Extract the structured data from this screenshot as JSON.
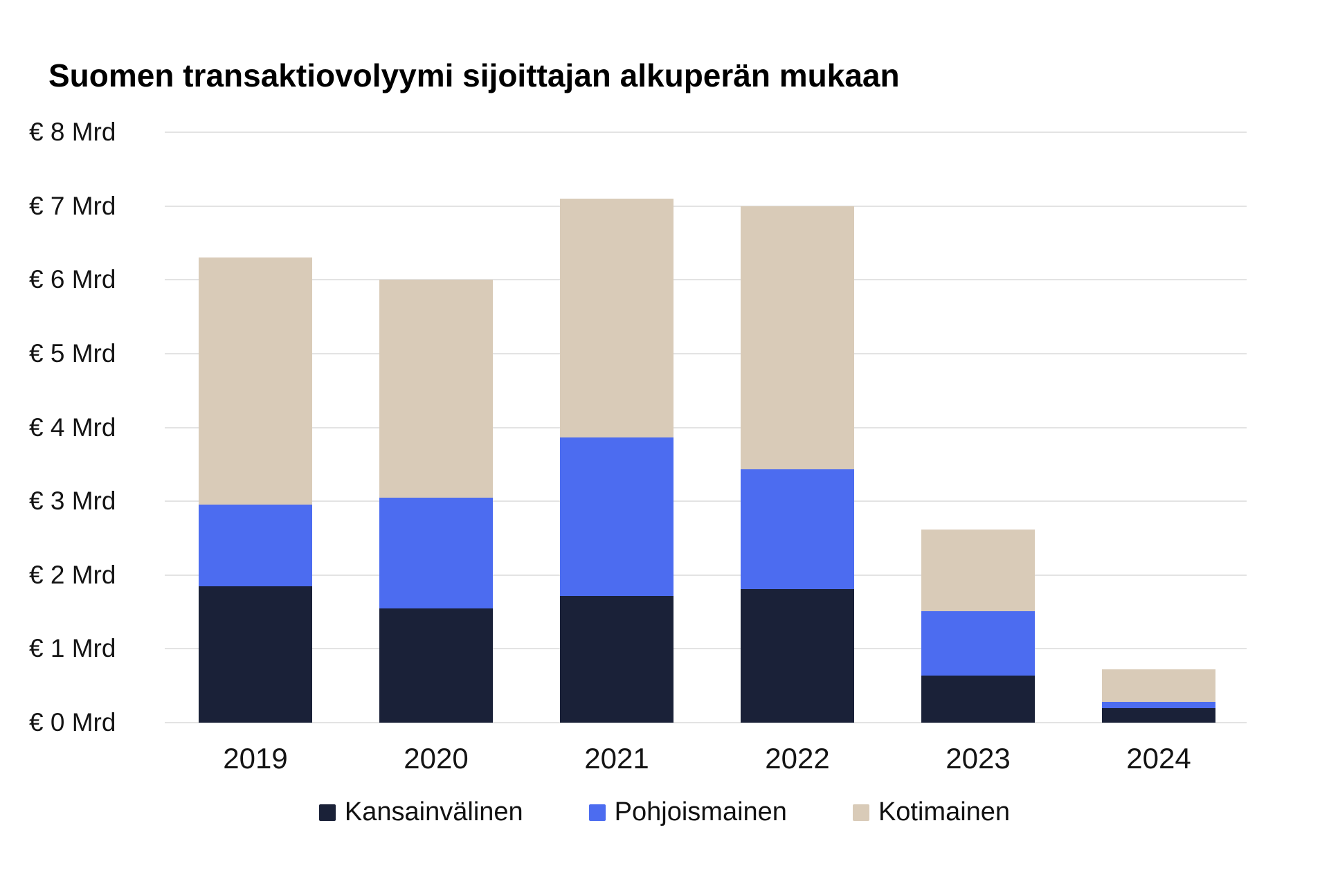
{
  "chart_data": {
    "type": "bar",
    "stacked": true,
    "title": "Suomen transaktiovolyymi sijoittajan alkuperän mukaan",
    "categories": [
      "2019",
      "2020",
      "2021",
      "2022",
      "2023",
      "2024"
    ],
    "series": [
      {
        "name": "Kansainvälinen",
        "color": "#1a2138",
        "values": [
          1.85,
          1.55,
          1.72,
          1.81,
          0.64,
          0.2
        ]
      },
      {
        "name": "Pohjoismainen",
        "color": "#4c6cf0",
        "values": [
          1.1,
          1.5,
          2.14,
          1.62,
          0.87,
          0.08
        ]
      },
      {
        "name": "Kotimainen",
        "color": "#d9cbb8",
        "values": [
          3.35,
          2.95,
          3.24,
          3.57,
          1.11,
          0.44
        ]
      }
    ],
    "totals": [
      6.3,
      6.0,
      7.1,
      7.0,
      2.62,
      0.72
    ],
    "unit": "Mrd €",
    "yticks": [
      "€ 0 Mrd",
      "€ 1 Mrd",
      "€ 2 Mrd",
      "€ 3 Mrd",
      "€ 4 Mrd",
      "€ 5 Mrd",
      "€ 6 Mrd",
      "€ 7 Mrd",
      "€ 8 Mrd"
    ],
    "ytick_values": [
      0,
      1,
      2,
      3,
      4,
      5,
      6,
      7,
      8
    ],
    "ylim": [
      0,
      8
    ],
    "grid": true,
    "legend_position": "bottom",
    "colors": {
      "background": "#ffffff",
      "gridline": "#e3e3e3",
      "text": "#141414",
      "title": "#000000"
    }
  }
}
